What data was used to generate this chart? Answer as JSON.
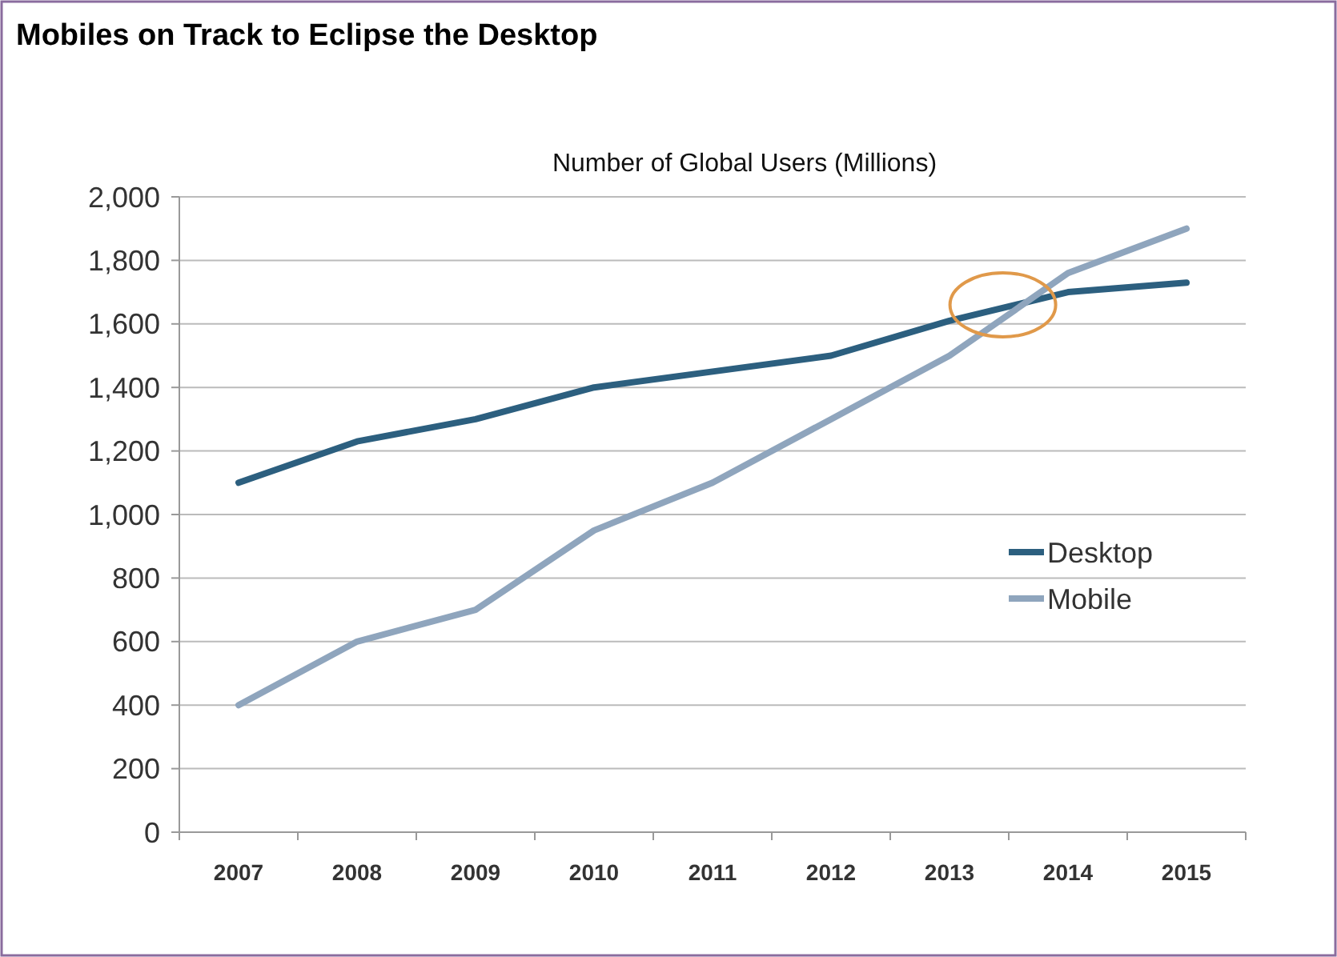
{
  "chart_data": {
    "type": "line",
    "title": "Mobiles on Track to Eclipse the Desktop",
    "subtitle": "Number of Global Users (Millions)",
    "categories": [
      "2007",
      "2008",
      "2009",
      "2010",
      "2011",
      "2012",
      "2013",
      "2014",
      "2015"
    ],
    "series": [
      {
        "name": "Desktop",
        "color": "#2c5f7f",
        "values": [
          1100,
          1230,
          1300,
          1400,
          1450,
          1500,
          1610,
          1700,
          1730
        ]
      },
      {
        "name": "Mobile",
        "color": "#8fa5bd",
        "values": [
          400,
          600,
          700,
          950,
          1100,
          1300,
          1500,
          1760,
          1900
        ]
      }
    ],
    "ylim": [
      0,
      2000
    ],
    "yticks": [
      {
        "value": 0,
        "label": "0"
      },
      {
        "value": 200,
        "label": "200"
      },
      {
        "value": 400,
        "label": "400"
      },
      {
        "value": 600,
        "label": "600"
      },
      {
        "value": 800,
        "label": "800"
      },
      {
        "value": 1000,
        "label": "1,000"
      },
      {
        "value": 1200,
        "label": "1,200"
      },
      {
        "value": 1400,
        "label": "1,400"
      },
      {
        "value": 1600,
        "label": "1,600"
      },
      {
        "value": 1800,
        "label": "1,800"
      },
      {
        "value": 2000,
        "label": "2,000"
      }
    ],
    "grid": "y",
    "legend": "right",
    "marker": "none",
    "line_style": "solid"
  }
}
